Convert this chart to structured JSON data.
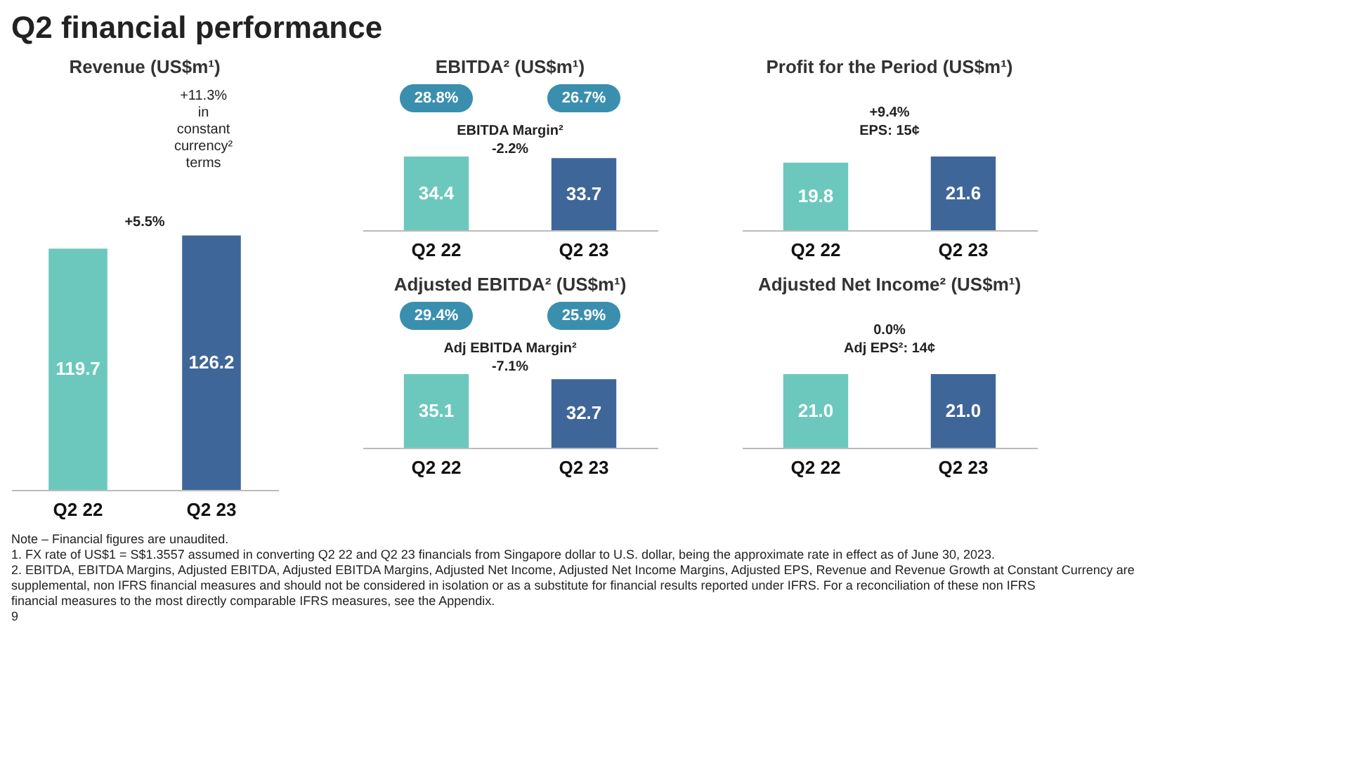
{
  "chart_data": [
    {
      "type": "other",
      "title": "Q2 financial performance",
      "annotations": [
        "Note – Financial figures are unaudited.",
        "1. FX rate of US$1 = S$1.3557 assumed in converting Q2 22 and Q2 23 financials from Singapore dollar to U.S. dollar, being the approximate rate in effect as of June 30, 2023.",
        "2. EBITDA, EBITDA Margins, Adjusted EBITDA, Adjusted EBITDA Margins, Adjusted Net Income, Adjusted Net Income Margins, Adjusted EPS, Revenue and Revenue Growth at Constant Currency are supplemental, non IFRS financial measures and should not be considered in isolation or as a substitute for financial results reported under IFRS. For a reconciliation of these non IFRS financial measures to the most directly comparable IFRS measures, see the Appendix.",
        "9"
      ]
    },
    {
      "type": "bar",
      "title": "Revenue (US$m¹)",
      "categories": [
        "Q2 22",
        "Q2 23"
      ],
      "values": [
        119.7,
        126.2
      ],
      "colors": [
        "#6cc8bd",
        "#3f6699"
      ],
      "data_labels": true,
      "annotations": [
        "+11.3% in constant currency² terms",
        "+5.5%"
      ]
    },
    {
      "type": "bar",
      "title": "EBITDA² (US$m¹)",
      "categories": [
        "Q2 22",
        "Q2 23"
      ],
      "values": [
        34.4,
        33.7
      ],
      "colors": [
        "#6cc8bd",
        "#3f6699"
      ],
      "data_labels": true,
      "annotations": [
        "28.8%",
        "26.7%",
        "EBITDA Margin²",
        "-2.2%"
      ]
    },
    {
      "type": "bar",
      "title": "Profit for the Period (US$m¹)",
      "categories": [
        "Q2 22",
        "Q2 23"
      ],
      "values": [
        19.8,
        21.6
      ],
      "colors": [
        "#6cc8bd",
        "#3f6699"
      ],
      "data_labels": true,
      "annotations": [
        "+9.4%",
        "EPS: 15¢"
      ]
    },
    {
      "type": "bar",
      "title": "Adjusted EBITDA² (US$m¹)",
      "categories": [
        "Q2 22",
        "Q2 23"
      ],
      "values": [
        35.1,
        32.7
      ],
      "colors": [
        "#6cc8bd",
        "#3f6699"
      ],
      "data_labels": true,
      "annotations": [
        "29.4%",
        "25.9%",
        "Adj EBITDA Margin²",
        "-7.1%"
      ]
    },
    {
      "type": "bar",
      "title": "Adjusted Net Income² (US$m¹)",
      "categories": [
        "Q2 22",
        "Q2 23"
      ],
      "values": [
        21.0,
        21.0
      ],
      "colors": [
        "#6cc8bd",
        "#3f6699"
      ],
      "value_labels": [
        "21.0",
        "21.0"
      ],
      "annotations": [
        "0.0%",
        "Adj EPS²: 14¢"
      ]
    }
  ]
}
